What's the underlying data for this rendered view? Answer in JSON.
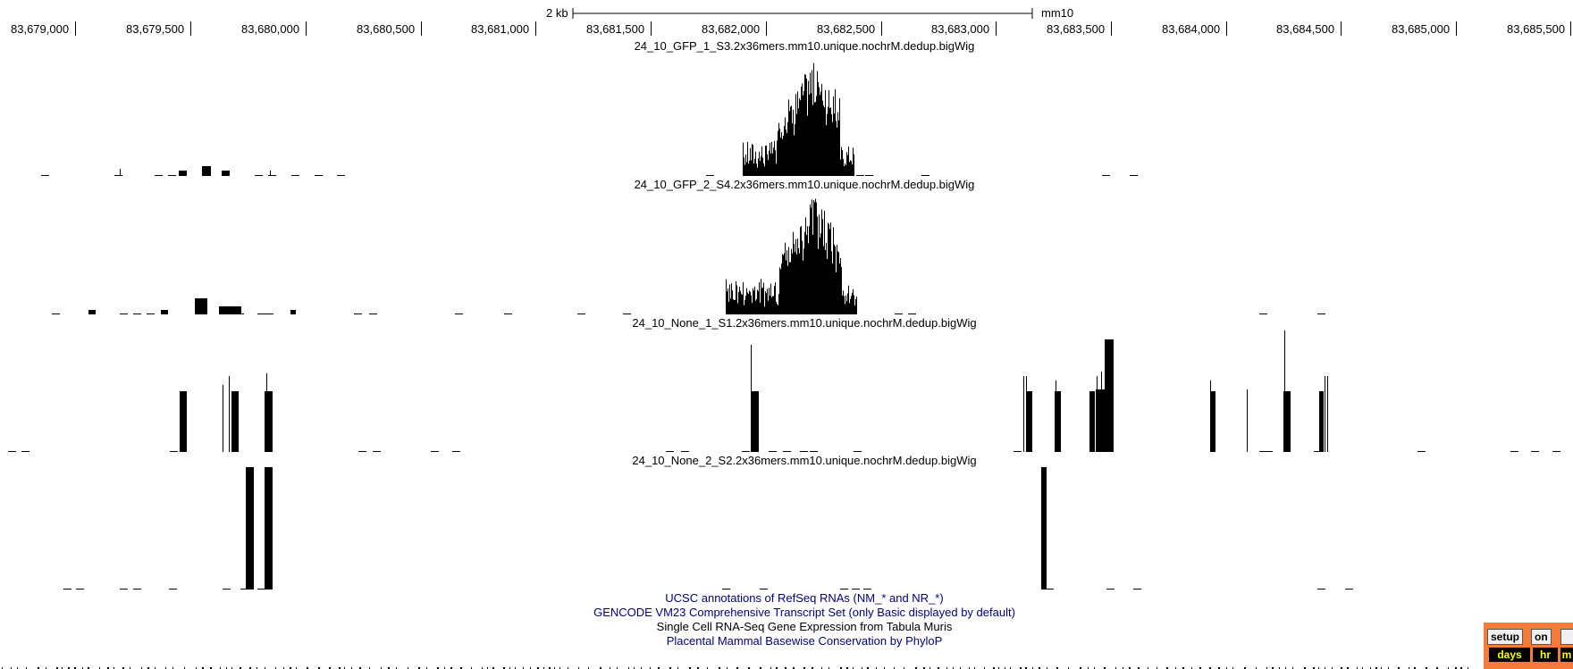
{
  "scale_bar": {
    "size_label": "2 kb",
    "assembly": "mm10"
  },
  "coordinates": [
    "83,679,000",
    "83,679,500",
    "83,680,000",
    "83,680,500",
    "83,681,000",
    "83,681,500",
    "83,682,000",
    "83,682,500",
    "83,683,000",
    "83,683,500",
    "83,684,000",
    "83,684,500",
    "83,685,000",
    "83,685,500"
  ],
  "tracks": [
    {
      "title": "24_10_GFP_1_S3.2x36mers.mm10.unique.nochrM.dedup.bigWig",
      "kind": "dense"
    },
    {
      "title": "24_10_GFP_2_S4.2x36mers.mm10.unique.nochrM.dedup.bigWig",
      "kind": "dense"
    },
    {
      "title": "24_10_None_1_S1.2x36mers.mm10.unique.nochrM.dedup.bigWig",
      "kind": "sparse"
    },
    {
      "title": "24_10_None_2_S2.2x36mers.mm10.unique.nochrM.dedup.bigWig",
      "kind": "sparse"
    }
  ],
  "annotation_tracks": [
    {
      "label": "UCSC annotations of RefSeq RNAs (NM_* and NR_*)",
      "link": true
    },
    {
      "label": "GENCODE VM23 Comprehensive Transcript Set (only Basic displayed by default)",
      "link": true
    },
    {
      "label": "Single Cell RNA-Seq Gene Expression from Tabula Muris",
      "link": false
    },
    {
      "label": "Placental Mammal Basewise Conservation by PhyloP",
      "link": true
    }
  ],
  "controls": {
    "setup_label": "setup",
    "on_label": "on",
    "cells": [
      "days",
      "hr",
      "m"
    ]
  },
  "colors": {
    "signal": "#000000",
    "link": "#000080",
    "panel": "#f37b3c",
    "cell_bg": "#000000",
    "cell_text": "#ffff00"
  }
}
